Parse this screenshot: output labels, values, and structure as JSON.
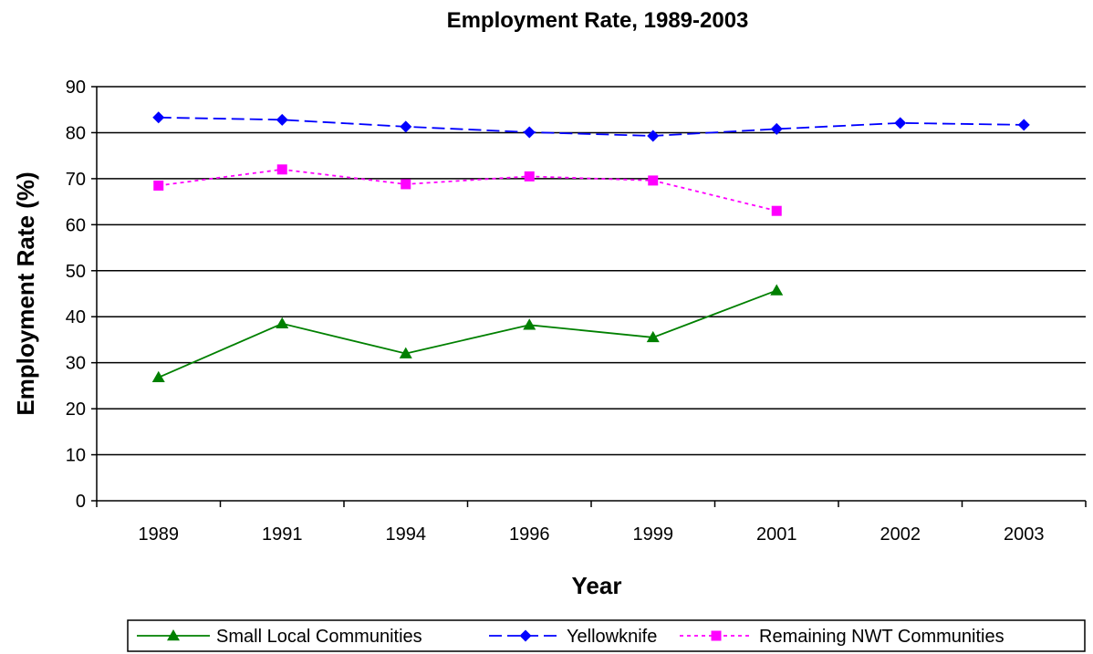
{
  "chart_data": {
    "type": "line",
    "title": "Employment Rate, 1989-2003",
    "xlabel": "Year",
    "ylabel": "Employment Rate (%)",
    "categories": [
      "1989",
      "1991",
      "1994",
      "1996",
      "1999",
      "2001",
      "2002",
      "2003"
    ],
    "ylim": [
      0,
      90
    ],
    "yticks": [
      0,
      10,
      20,
      30,
      40,
      50,
      60,
      70,
      80,
      90
    ],
    "grid": true,
    "legend_position": "bottom",
    "series": [
      {
        "name": "Small Local Communities",
        "values": [
          26.8,
          38.5,
          32.0,
          38.2,
          35.5,
          45.7,
          null,
          null
        ],
        "color": "#008000",
        "marker": "triangle",
        "line_style": "solid"
      },
      {
        "name": "Yellowknife",
        "values": [
          83.3,
          82.8,
          81.3,
          80.1,
          79.3,
          80.8,
          82.1,
          81.7
        ],
        "color": "#0000ff",
        "marker": "diamond",
        "line_style": "dashed"
      },
      {
        "name": "Remaining NWT Communities",
        "values": [
          68.5,
          72.0,
          68.8,
          70.5,
          69.6,
          63.0,
          null,
          null
        ],
        "color": "#ff00ff",
        "marker": "square",
        "line_style": "dotted"
      }
    ]
  }
}
